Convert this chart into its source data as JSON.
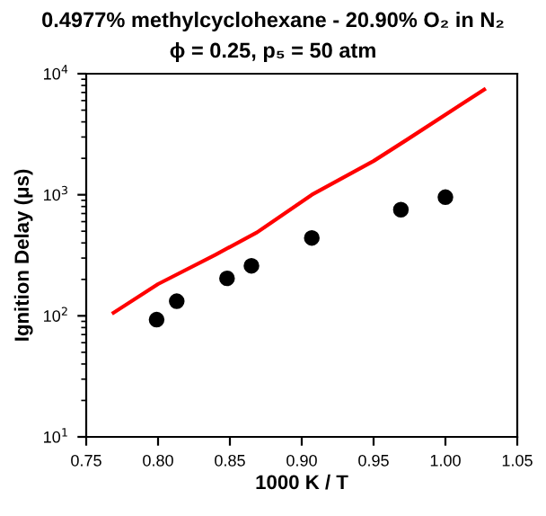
{
  "chart_data": {
    "type": "scatter",
    "title": "0.4977% methylcyclohexane - 20.90% O₂ in N₂",
    "subtitle": "ϕ = 0.25, p₅ = 50 atm",
    "xlabel": "1000 K / T",
    "ylabel": "Ignition Delay (μs)",
    "log": "y",
    "xlim": [
      0.75,
      1.05
    ],
    "xticks": [
      {
        "value": 0.75,
        "label": "0.75"
      },
      {
        "value": 0.8,
        "label": "0.80"
      },
      {
        "value": 0.85,
        "label": "0.85"
      },
      {
        "value": 0.9,
        "label": "0.90"
      },
      {
        "value": 0.95,
        "label": "0.95"
      },
      {
        "value": 1.0,
        "label": "1.00"
      },
      {
        "value": 1.05,
        "label": "1.05"
      }
    ],
    "ylim": [
      10,
      10000
    ],
    "yticks": [
      {
        "value": 10,
        "label": "10$^{1}$"
      },
      {
        "value": 100,
        "label": "10$^{2}$"
      },
      {
        "value": 1000,
        "label": "10$^{3}$"
      },
      {
        "value": 10000,
        "label": "10$^{4}$"
      }
    ],
    "grid": false,
    "legend": false,
    "series": [
      {
        "color": "#000000",
        "marker": "circle",
        "x": [
          0.799,
          0.813,
          0.848,
          0.865,
          0.907,
          0.969,
          1.0
        ],
        "values": [
          93,
          132,
          204,
          259,
          440,
          753,
          955
        ]
      },
      {
        "type": "line",
        "color": "#ff0000",
        "marker": "none",
        "line_style": "solid",
        "x": [
          0.769,
          0.8,
          0.84,
          0.869,
          0.907,
          0.95,
          0.973,
          1.027
        ],
        "values": [
          106,
          183,
          320,
          490,
          1000,
          1900,
          2840,
          7400
        ]
      }
    ]
  }
}
